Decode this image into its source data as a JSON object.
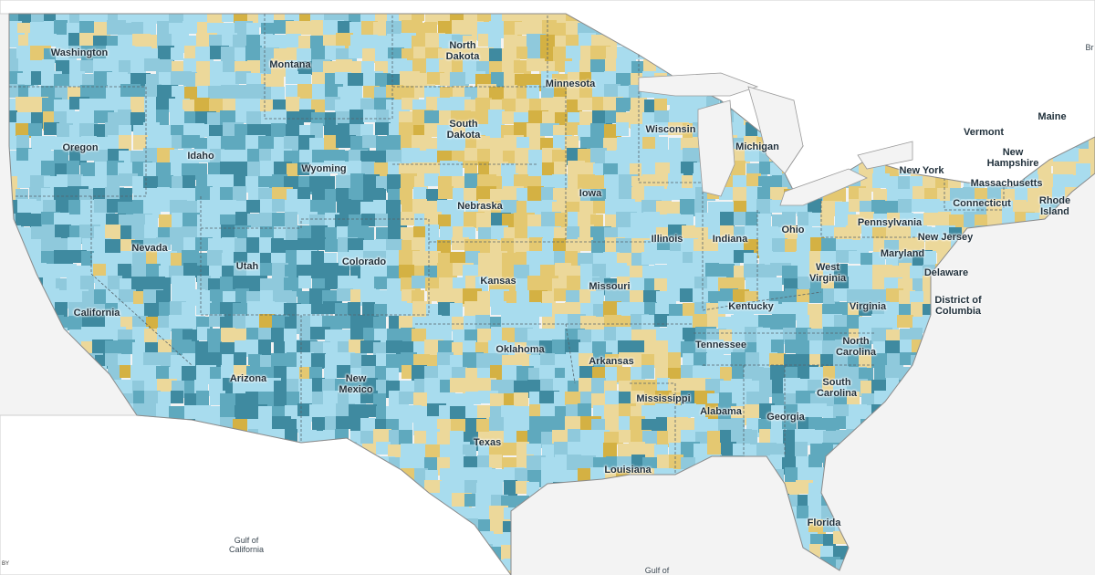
{
  "map": {
    "colors": {
      "water": "#f3f3f3",
      "foreign_land": "#ffffff",
      "palette": [
        "#a8dcee",
        "#8fc9dc",
        "#5fa9be",
        "#3f8aa0",
        "#ecd89a",
        "#e4c871",
        "#d4b143"
      ]
    },
    "states": {
      "washington": "Washington",
      "oregon": "Oregon",
      "california": "California",
      "nevada": "Nevada",
      "idaho": "Idaho",
      "montana": "Montana",
      "wyoming": "Wyoming",
      "utah": "Utah",
      "arizona": "Arizona",
      "colorado": "Colorado",
      "new_mexico": "New Mexico",
      "north_dakota": "North Dakota",
      "south_dakota": "South Dakota",
      "nebraska": "Nebraska",
      "kansas": "Kansas",
      "oklahoma": "Oklahoma",
      "texas": "Texas",
      "minnesota": "Minnesota",
      "iowa": "Iowa",
      "missouri": "Missouri",
      "arkansas": "Arkansas",
      "louisiana": "Louisiana",
      "wisconsin": "Wisconsin",
      "illinois": "Illinois",
      "mississippi": "Mississippi",
      "michigan": "Michigan",
      "indiana": "Indiana",
      "kentucky": "Kentucky",
      "tennessee": "Tennessee",
      "alabama": "Alabama",
      "georgia": "Georgia",
      "florida": "Florida",
      "ohio": "Ohio",
      "west_virginia": "West Virginia",
      "virginia": "Virginia",
      "north_carolina": "North Carolina",
      "south_carolina": "South Carolina",
      "pennsylvania": "Pennsylvania",
      "new_york": "New York",
      "vermont": "Vermont",
      "new_hampshire": "New Hampshire",
      "maine": "Maine",
      "massachusetts": "Massachusetts",
      "connecticut": "Connecticut",
      "rhode_island": "Rhode Island",
      "new_jersey": "New Jersey",
      "maryland": "Maryland",
      "delaware": "Delaware",
      "district_of_columbia": "District of Columbia"
    },
    "water_labels": {
      "gulf_of_california": "Gulf of California",
      "gulf_of_mexico_partial": "Gulf of",
      "br_partial": "Br"
    },
    "credit": "BY"
  }
}
